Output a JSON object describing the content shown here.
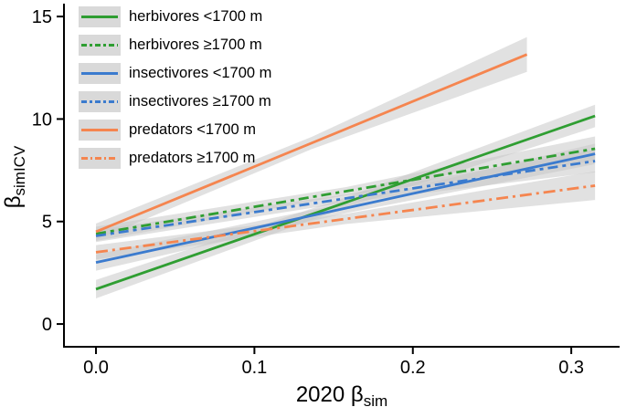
{
  "chart_data": {
    "type": "line",
    "title": "",
    "xlabel": {
      "text": "2020 β",
      "sub": "sim"
    },
    "ylabel": {
      "text": "β",
      "sub": "simICV"
    },
    "xlim": [
      -0.0202,
      0.3305
    ],
    "ylim": [
      -1.11,
      15.45
    ],
    "x_ticks": [
      {
        "v": 0.0,
        "label": "0.0"
      },
      {
        "v": 0.1,
        "label": "0.1"
      },
      {
        "v": 0.2,
        "label": "0.2"
      },
      {
        "v": 0.3,
        "label": "0.3"
      }
    ],
    "y_ticks": [
      {
        "v": 0,
        "label": "0"
      },
      {
        "v": 5,
        "label": "5"
      },
      {
        "v": 10,
        "label": "10"
      },
      {
        "v": 15,
        "label": "15"
      }
    ],
    "grid": false,
    "legend_position": "top-left-inside",
    "band_color": "#c9c9c9",
    "band_opacity": 0.55,
    "axis_color": "#000000",
    "series": [
      {
        "label": "herbivores <1700 m",
        "color": "#2f9e32",
        "style": "solid",
        "dash": "",
        "legend_dash": "",
        "x": [
          0.0,
          0.315
        ],
        "y": [
          1.7,
          10.15
        ],
        "ci": [
          0.45,
          0.25,
          0.55
        ]
      },
      {
        "label": "herbivores ≥1700 m",
        "color": "#2f9e32",
        "style": "dashed",
        "dash": "11,5,4,5",
        "legend_dash": "6,3,3,3",
        "x": [
          0.0,
          0.315
        ],
        "y": [
          4.4,
          8.55
        ],
        "ci": [
          0.35,
          0.2,
          0.6
        ]
      },
      {
        "label": "insectivores <1700 m",
        "color": "#3b7bce",
        "style": "solid",
        "dash": "",
        "legend_dash": "",
        "x": [
          0.0,
          0.315
        ],
        "y": [
          3.0,
          8.3
        ],
        "ci": [
          0.4,
          0.25,
          0.5
        ]
      },
      {
        "label": "insectivores ≥1700 m",
        "color": "#3b7bce",
        "style": "dashed",
        "dash": "11,5,4,5",
        "legend_dash": "6,3,3,3",
        "x": [
          0.0,
          0.315
        ],
        "y": [
          4.3,
          7.95
        ],
        "ci": [
          0.3,
          0.2,
          0.55
        ]
      },
      {
        "label": "predators <1700 m",
        "color": "#f5854f",
        "style": "solid",
        "dash": "",
        "legend_dash": "",
        "x": [
          0.0,
          0.272
        ],
        "y": [
          4.5,
          13.15
        ],
        "ci": [
          0.4,
          0.3,
          0.85
        ]
      },
      {
        "label": "predators ≥1700 m",
        "color": "#f5854f",
        "style": "dash-dot",
        "dash": "13,5,3,5",
        "legend_dash": "7,3,2,3",
        "x": [
          0.0,
          0.315
        ],
        "y": [
          3.5,
          6.75
        ],
        "ci": [
          0.35,
          0.25,
          0.7
        ]
      }
    ]
  }
}
